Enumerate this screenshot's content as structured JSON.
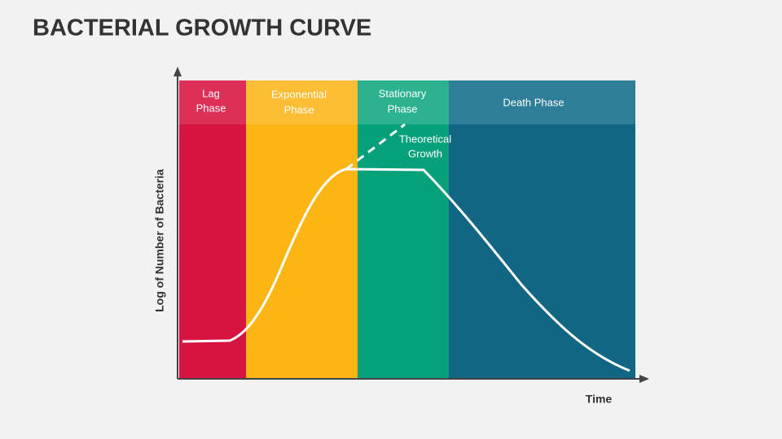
{
  "header": {
    "title": "BACTERIAL GROWTH CURVE"
  },
  "diagram": {
    "y_axis_label": "Log of Number of Bacteria",
    "x_axis_label": "Time",
    "phases": [
      {
        "label": [
          "Lag",
          "Phase"
        ]
      },
      {
        "label": [
          "Exponential",
          "Phase"
        ]
      },
      {
        "label": [
          "Stationary",
          "Phase"
        ]
      },
      {
        "label": [
          "Death Phase"
        ]
      }
    ],
    "annotation": [
      "Theoretical",
      "Growth"
    ]
  }
}
